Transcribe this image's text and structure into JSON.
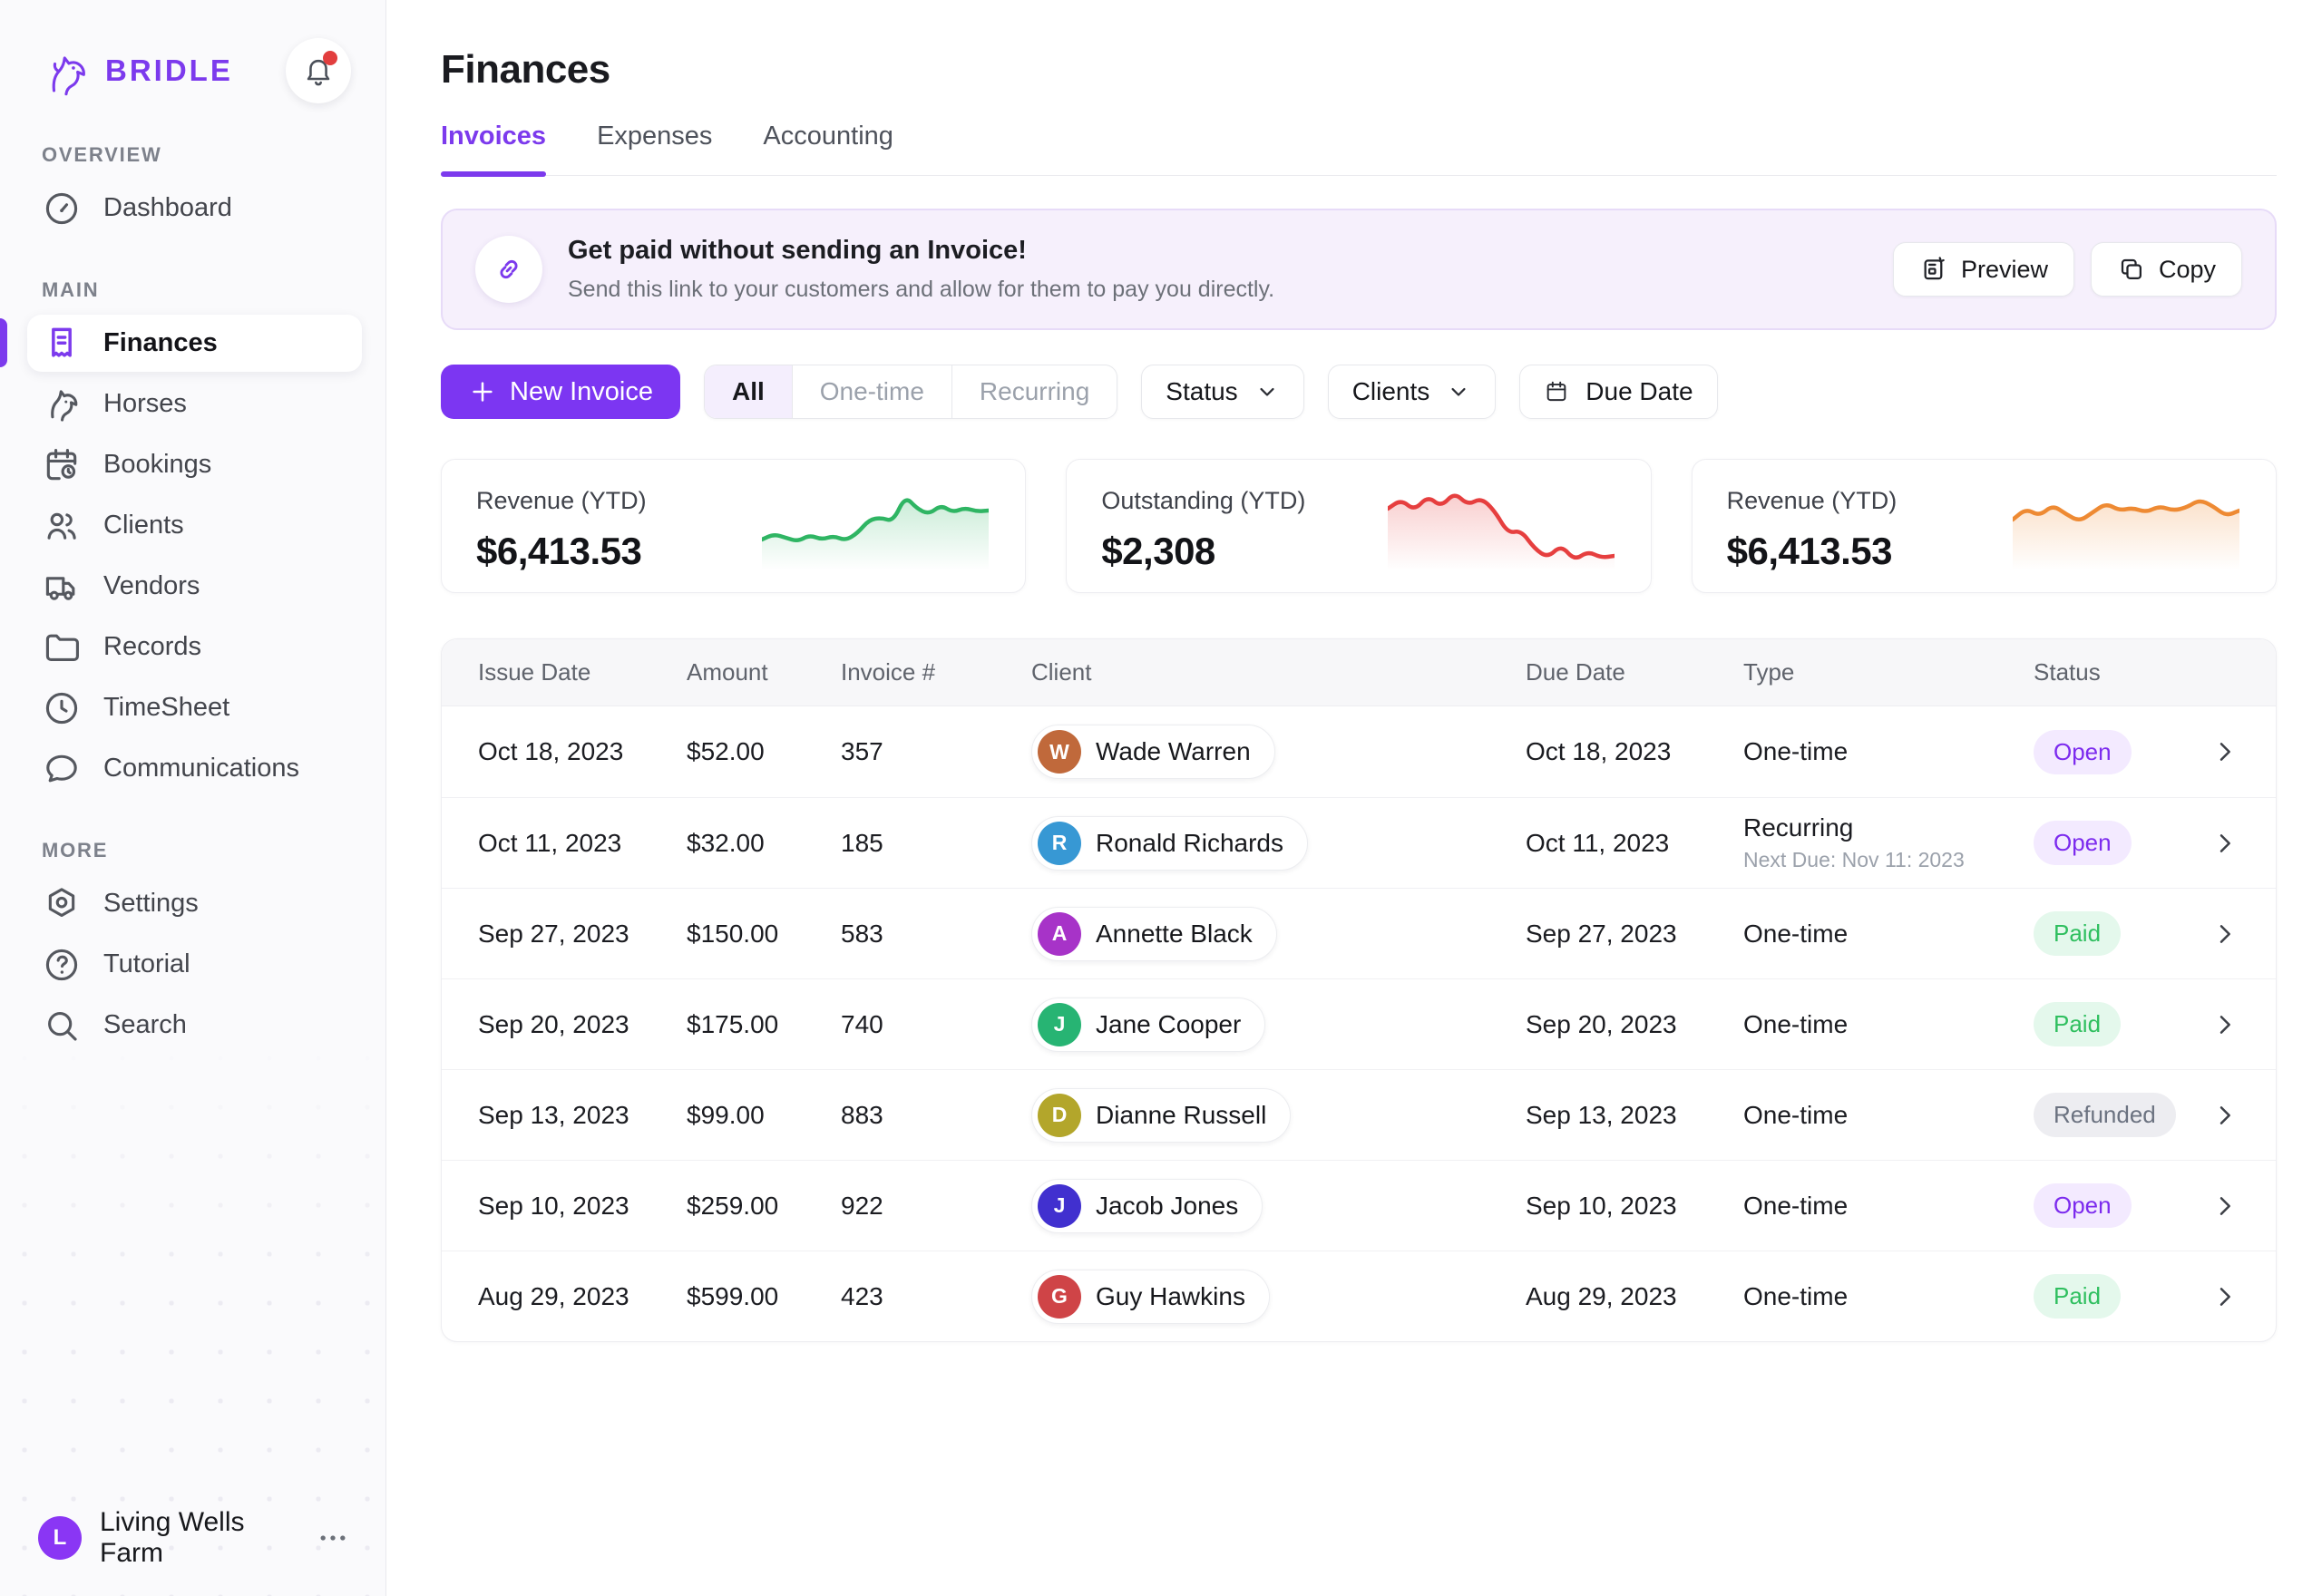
{
  "brand": {
    "name": "BRIDLE"
  },
  "sidebar": {
    "sections": [
      {
        "label": "OVERVIEW",
        "items": [
          {
            "label": "Dashboard",
            "icon": "dashboard",
            "active": false
          }
        ]
      },
      {
        "label": "MAIN",
        "items": [
          {
            "label": "Finances",
            "icon": "finances",
            "active": true
          },
          {
            "label": "Horses",
            "icon": "horses",
            "active": false
          },
          {
            "label": "Bookings",
            "icon": "bookings",
            "active": false
          },
          {
            "label": "Clients",
            "icon": "clients",
            "active": false
          },
          {
            "label": "Vendors",
            "icon": "vendors",
            "active": false
          },
          {
            "label": "Records",
            "icon": "records",
            "active": false
          },
          {
            "label": "TimeSheet",
            "icon": "timesheet",
            "active": false
          },
          {
            "label": "Communications",
            "icon": "communications",
            "active": false
          }
        ]
      },
      {
        "label": "MORE",
        "items": [
          {
            "label": "Settings",
            "icon": "settings",
            "active": false
          },
          {
            "label": "Tutorial",
            "icon": "tutorial",
            "active": false
          },
          {
            "label": "Search",
            "icon": "search",
            "active": false
          }
        ]
      }
    ],
    "user": {
      "initial": "L",
      "name": "Living Wells Farm"
    }
  },
  "header": {
    "title": "Finances",
    "tabs": [
      {
        "label": "Invoices",
        "active": true
      },
      {
        "label": "Expenses",
        "active": false
      },
      {
        "label": "Accounting",
        "active": false
      }
    ]
  },
  "banner": {
    "title": "Get paid without sending an Invoice!",
    "subtitle": "Send this link to your customers and allow for them to pay you directly.",
    "preview_label": "Preview",
    "copy_label": "Copy"
  },
  "toolbar": {
    "new_invoice_label": "New Invoice",
    "segments": [
      "All",
      "One-time",
      "Recurring"
    ],
    "active_segment": "All",
    "status_label": "Status",
    "clients_label": "Clients",
    "due_date_label": "Due Date"
  },
  "stats": [
    {
      "label": "Revenue (YTD)",
      "value": "$6,413.53",
      "color": "#2fb563",
      "type": "line",
      "sparkline": [
        62,
        56,
        60,
        64,
        57,
        62,
        58,
        63,
        55,
        40,
        38,
        42,
        14,
        28,
        34,
        24,
        32,
        27,
        31,
        30
      ]
    },
    {
      "label": "Outstanding (YTD)",
      "value": "$2,308",
      "color": "#e63f3f",
      "type": "line",
      "sparkline": [
        28,
        18,
        30,
        14,
        26,
        10,
        24,
        16,
        30,
        55,
        52,
        72,
        82,
        68,
        85,
        75,
        82,
        80
      ]
    },
    {
      "label": "Revenue (YTD)",
      "value": "$6,413.53",
      "color": "#ee8a33",
      "type": "line",
      "sparkline": [
        40,
        28,
        36,
        24,
        34,
        42,
        32,
        22,
        30,
        27,
        32,
        25,
        30,
        27,
        18,
        25,
        36,
        30
      ]
    }
  ],
  "table": {
    "columns": [
      "Issue Date",
      "Amount",
      "Invoice #",
      "Client",
      "Due Date",
      "Type",
      "Status"
    ],
    "rows": [
      {
        "issue_date": "Oct 18, 2023",
        "amount": "$52.00",
        "invoice": "357",
        "client": {
          "name": "Wade Warren",
          "initial": "W",
          "color": "#c0693b"
        },
        "due_date": "Oct 18, 2023",
        "type": "One-time",
        "type_sub": "",
        "status": "Open"
      },
      {
        "issue_date": "Oct 11, 2023",
        "amount": "$32.00",
        "invoice": "185",
        "client": {
          "name": "Ronald Richards",
          "initial": "R",
          "color": "#3798d4"
        },
        "due_date": "Oct 11, 2023",
        "type": "Recurring",
        "type_sub": "Next Due: Nov 11: 2023",
        "status": "Open"
      },
      {
        "issue_date": "Sep 27, 2023",
        "amount": "$150.00",
        "invoice": "583",
        "client": {
          "name": "Annette Black",
          "initial": "A",
          "color": "#a733c8"
        },
        "due_date": "Sep 27, 2023",
        "type": "One-time",
        "type_sub": "",
        "status": "Paid"
      },
      {
        "issue_date": "Sep 20, 2023",
        "amount": "$175.00",
        "invoice": "740",
        "client": {
          "name": "Jane Cooper",
          "initial": "J",
          "color": "#27b473"
        },
        "due_date": "Sep 20, 2023",
        "type": "One-time",
        "type_sub": "",
        "status": "Paid"
      },
      {
        "issue_date": "Sep 13, 2023",
        "amount": "$99.00",
        "invoice": "883",
        "client": {
          "name": "Dianne Russell",
          "initial": "D",
          "color": "#b3a62b"
        },
        "due_date": "Sep 13, 2023",
        "type": "One-time",
        "type_sub": "",
        "status": "Refunded"
      },
      {
        "issue_date": "Sep 10, 2023",
        "amount": "$259.00",
        "invoice": "922",
        "client": {
          "name": "Jacob Jones",
          "initial": "J",
          "color": "#4130cf"
        },
        "due_date": "Sep 10, 2023",
        "type": "One-time",
        "type_sub": "",
        "status": "Open"
      },
      {
        "issue_date": "Aug 29, 2023",
        "amount": "$599.00",
        "invoice": "423",
        "client": {
          "name": "Guy Hawkins",
          "initial": "G",
          "color": "#cf4447"
        },
        "due_date": "Aug 29, 2023",
        "type": "One-time",
        "type_sub": "",
        "status": "Paid"
      }
    ]
  },
  "status_styles": {
    "Open": {
      "fg": "#7c2bee",
      "bg": "#f3eaff"
    },
    "Paid": {
      "fg": "#2fbf5f",
      "bg": "#e4f8ec"
    },
    "Refunded": {
      "fg": "#6b7280",
      "bg": "#ededf1"
    }
  },
  "accent_color": "#7c3aed"
}
